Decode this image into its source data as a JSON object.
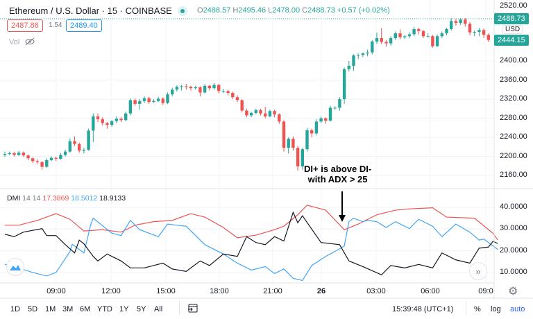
{
  "header": {
    "title": "Ethereum / U.S. Dollar · 15 · COINBASE",
    "ohlc": {
      "o_label": "O",
      "o": "2488.57",
      "h_label": "H",
      "h": "2495.46",
      "l_label": "L",
      "l": "2478.00",
      "c_label": "C",
      "c": "2488.73",
      "change": "+0.57 (+0.02%)"
    },
    "bid": "2487.86",
    "spread": "1.54",
    "ask": "2489.40",
    "vol_label": "Vol"
  },
  "price_axis": {
    "currency": "USD",
    "ticks": [
      "2520.00",
      "2400.00",
      "2360.00",
      "2320.00",
      "2280.00",
      "2240.00",
      "2200.00",
      "2160.00"
    ],
    "last_price_tag": "2488.73",
    "close_tag": "2444.15"
  },
  "dmi": {
    "label": "DMI",
    "params": "14 14",
    "minus_di": "17.3869",
    "plus_di": "18.5012",
    "adx": "18.9133",
    "ticks": [
      "40.0000",
      "30.0000",
      "20.0000",
      "10.0000"
    ]
  },
  "time_axis": {
    "ticks": [
      "09:00",
      "12:00",
      "15:00",
      "18:00",
      "21:00",
      "26",
      "03:00",
      "06:00",
      "09:0"
    ]
  },
  "annotation": {
    "line1": "DI+ is above DI-",
    "line2": "with ADX > 25"
  },
  "toolbar": {
    "ranges": [
      "1D",
      "5D",
      "1M",
      "3M",
      "6M",
      "YTD",
      "1Y",
      "5Y",
      "All"
    ],
    "clock": "15:39:48 (UTC+1)",
    "percent": "%",
    "log": "log",
    "auto": "auto"
  },
  "colors": {
    "up": "#26a69a",
    "down": "#ef5350",
    "plus_di": "#42a5f5",
    "minus_di": "#ef5350",
    "adx": "#131722",
    "accent": "#2962ff"
  },
  "icons": [
    "calendar-goto-icon",
    "eye-crossed-icon",
    "cloud-logo-icon",
    "scroll-right-icon",
    "settings-gear-icon",
    "market-status-dot-icon"
  ],
  "chart_data": [
    {
      "type": "candlestick",
      "title": "Ethereum / U.S. Dollar · 15 · COINBASE",
      "ylim": [
        2150,
        2525
      ],
      "ohlc": [
        [
          2203,
          2210,
          2199,
          2205
        ],
        [
          2205,
          2210,
          2202,
          2207
        ],
        [
          2207,
          2209,
          2200,
          2203
        ],
        [
          2203,
          2211,
          2201,
          2208
        ],
        [
          2208,
          2210,
          2199,
          2202
        ],
        [
          2202,
          2204,
          2192,
          2196
        ],
        [
          2196,
          2198,
          2186,
          2190
        ],
        [
          2190,
          2194,
          2184,
          2188
        ],
        [
          2188,
          2190,
          2172,
          2178
        ],
        [
          2178,
          2196,
          2176,
          2192
        ],
        [
          2192,
          2200,
          2190,
          2197
        ],
        [
          2197,
          2199,
          2190,
          2195
        ],
        [
          2195,
          2207,
          2193,
          2203
        ],
        [
          2203,
          2214,
          2200,
          2210
        ],
        [
          2210,
          2238,
          2208,
          2232
        ],
        [
          2232,
          2242,
          2222,
          2226
        ],
        [
          2226,
          2229,
          2208,
          2212
        ],
        [
          2212,
          2218,
          2206,
          2214
        ],
        [
          2214,
          2258,
          2212,
          2254
        ],
        [
          2254,
          2290,
          2230,
          2284
        ],
        [
          2284,
          2290,
          2272,
          2278
        ],
        [
          2278,
          2282,
          2265,
          2270
        ],
        [
          2270,
          2272,
          2258,
          2266
        ],
        [
          2266,
          2276,
          2262,
          2274
        ],
        [
          2274,
          2284,
          2270,
          2279
        ],
        [
          2279,
          2283,
          2272,
          2276
        ],
        [
          2276,
          2294,
          2274,
          2290
        ],
        [
          2290,
          2322,
          2286,
          2318
        ],
        [
          2318,
          2322,
          2306,
          2310
        ],
        [
          2310,
          2320,
          2298,
          2316
        ],
        [
          2316,
          2326,
          2312,
          2322
        ],
        [
          2322,
          2325,
          2310,
          2314
        ],
        [
          2314,
          2320,
          2312,
          2316
        ],
        [
          2316,
          2325,
          2314,
          2321
        ],
        [
          2321,
          2324,
          2308,
          2312
        ],
        [
          2312,
          2334,
          2310,
          2330
        ],
        [
          2330,
          2344,
          2326,
          2340
        ],
        [
          2340,
          2349,
          2336,
          2346
        ],
        [
          2346,
          2350,
          2338,
          2347
        ],
        [
          2347,
          2352,
          2340,
          2346
        ],
        [
          2346,
          2348,
          2338,
          2343
        ],
        [
          2343,
          2348,
          2340,
          2345
        ],
        [
          2345,
          2347,
          2326,
          2334
        ],
        [
          2334,
          2352,
          2332,
          2348
        ],
        [
          2348,
          2350,
          2338,
          2343
        ],
        [
          2343,
          2354,
          2340,
          2350
        ],
        [
          2350,
          2352,
          2332,
          2337
        ],
        [
          2337,
          2342,
          2333,
          2337
        ],
        [
          2337,
          2340,
          2328,
          2333
        ],
        [
          2333,
          2336,
          2320,
          2324
        ],
        [
          2324,
          2328,
          2314,
          2318
        ],
        [
          2318,
          2320,
          2292,
          2296
        ],
        [
          2296,
          2300,
          2282,
          2286
        ],
        [
          2286,
          2294,
          2282,
          2291
        ],
        [
          2291,
          2300,
          2288,
          2297
        ],
        [
          2297,
          2300,
          2286,
          2290
        ],
        [
          2290,
          2304,
          2280,
          2284
        ],
        [
          2284,
          2298,
          2282,
          2295
        ],
        [
          2295,
          2298,
          2282,
          2288
        ],
        [
          2288,
          2290,
          2268,
          2273
        ],
        [
          2273,
          2276,
          2210,
          2218
        ],
        [
          2218,
          2240,
          2206,
          2237
        ],
        [
          2237,
          2242,
          2212,
          2218
        ],
        [
          2218,
          2222,
          2170,
          2179
        ],
        [
          2179,
          2218,
          2172,
          2215
        ],
        [
          2215,
          2260,
          2210,
          2255
        ],
        [
          2255,
          2258,
          2240,
          2248
        ],
        [
          2248,
          2278,
          2244,
          2273
        ],
        [
          2273,
          2284,
          2270,
          2280
        ],
        [
          2280,
          2282,
          2268,
          2275
        ],
        [
          2275,
          2306,
          2273,
          2302
        ],
        [
          2302,
          2305,
          2298,
          2302
        ],
        [
          2302,
          2324,
          2296,
          2320
        ],
        [
          2320,
          2386,
          2310,
          2383
        ],
        [
          2383,
          2400,
          2378,
          2390
        ],
        [
          2390,
          2414,
          2380,
          2412
        ],
        [
          2412,
          2416,
          2404,
          2413
        ],
        [
          2413,
          2418,
          2408,
          2416
        ],
        [
          2416,
          2424,
          2410,
          2418
        ],
        [
          2418,
          2444,
          2414,
          2441
        ],
        [
          2441,
          2460,
          2436,
          2448
        ],
        [
          2448,
          2470,
          2436,
          2440
        ],
        [
          2440,
          2444,
          2430,
          2437
        ],
        [
          2437,
          2452,
          2432,
          2448
        ],
        [
          2448,
          2462,
          2444,
          2458
        ],
        [
          2458,
          2466,
          2446,
          2450
        ],
        [
          2450,
          2455,
          2446,
          2452
        ],
        [
          2452,
          2460,
          2448,
          2456
        ],
        [
          2456,
          2472,
          2452,
          2467
        ],
        [
          2467,
          2470,
          2456,
          2463
        ],
        [
          2463,
          2465,
          2448,
          2452
        ],
        [
          2452,
          2458,
          2450,
          2452
        ],
        [
          2452,
          2455,
          2428,
          2431
        ],
        [
          2431,
          2456,
          2430,
          2452
        ],
        [
          2452,
          2462,
          2448,
          2458
        ],
        [
          2458,
          2470,
          2454,
          2467
        ],
        [
          2467,
          2490,
          2464,
          2484
        ],
        [
          2484,
          2488,
          2474,
          2480
        ],
        [
          2480,
          2490,
          2476,
          2487
        ],
        [
          2487,
          2490,
          2472,
          2478
        ],
        [
          2478,
          2482,
          2454,
          2460
        ],
        [
          2460,
          2464,
          2452,
          2461
        ],
        [
          2461,
          2470,
          2452,
          2465
        ],
        [
          2465,
          2468,
          2448,
          2455
        ],
        [
          2455,
          2458,
          2440,
          2444.15
        ]
      ]
    },
    {
      "type": "line",
      "ylim": [
        5,
        45
      ],
      "x_unit": "bar index",
      "series": [
        {
          "name": "17.3869",
          "color": "#ef5350",
          "points": [
            [
              0,
              31.8
            ],
            [
              3,
              31.8
            ],
            [
              7,
              34
            ],
            [
              11,
              37.1
            ],
            [
              14,
              34.5
            ],
            [
              17,
              29.1
            ],
            [
              21,
              29.7
            ],
            [
              25,
              28.6
            ],
            [
              28,
              31.8
            ],
            [
              32,
              33.4
            ],
            [
              36,
              34
            ],
            [
              40,
              37.1
            ],
            [
              43,
              35.5
            ],
            [
              47,
              30.7
            ],
            [
              50,
              26
            ],
            [
              54,
              27.2
            ],
            [
              58,
              29.7
            ],
            [
              60,
              31.3
            ],
            [
              63,
              36.6
            ],
            [
              65,
              41
            ],
            [
              69,
              38.7
            ],
            [
              73,
              29.7
            ],
            [
              76,
              32.3
            ],
            [
              80,
              36.6
            ],
            [
              84,
              38.7
            ],
            [
              87,
              39.3
            ],
            [
              92,
              39.8
            ],
            [
              95,
              35.5
            ],
            [
              101,
              35
            ],
            [
              105,
              28
            ],
            [
              106,
              25
            ]
          ]
        },
        {
          "name": "18.5012",
          "color": "#42a5f5",
          "points": [
            [
              0,
              13.7
            ],
            [
              2,
              12.7
            ],
            [
              6,
              10
            ],
            [
              9,
              8.4
            ],
            [
              11,
              10
            ],
            [
              14,
              19.6
            ],
            [
              14.5,
              23
            ],
            [
              17,
              19
            ],
            [
              18.5,
              32.3
            ],
            [
              19,
              35
            ],
            [
              23,
              28.1
            ],
            [
              25,
              27
            ],
            [
              27,
              34
            ],
            [
              29,
              29.7
            ],
            [
              33,
              26.5
            ],
            [
              35,
              32.3
            ],
            [
              39,
              31.3
            ],
            [
              43,
              22.8
            ],
            [
              47,
              18.5
            ],
            [
              50,
              14.3
            ],
            [
              53,
              11.1
            ],
            [
              56,
              12.7
            ],
            [
              58,
              9.5
            ],
            [
              60,
              11.6
            ],
            [
              62,
              7.3
            ],
            [
              64,
              6.3
            ],
            [
              66,
              13.2
            ],
            [
              69,
              17.4
            ],
            [
              72,
              20.9
            ],
            [
              73,
              22.2
            ],
            [
              74,
              33.4
            ],
            [
              75,
              35
            ],
            [
              77,
              33.4
            ],
            [
              78,
              34
            ],
            [
              80,
              33.4
            ],
            [
              82,
              30.7
            ],
            [
              84,
              33.4
            ],
            [
              87,
              30.2
            ],
            [
              89,
              34.5
            ],
            [
              92,
              31.3
            ],
            [
              94,
              26.5
            ],
            [
              97,
              32.3
            ],
            [
              100,
              28.6
            ],
            [
              102,
              24.9
            ],
            [
              103,
              25.4
            ],
            [
              106,
              20.6
            ]
          ]
        },
        {
          "name": "18.9133",
          "color": "#131722",
          "points": [
            [
              0,
              27.6
            ],
            [
              2,
              26.5
            ],
            [
              4,
              28.6
            ],
            [
              8,
              30.2
            ],
            [
              9,
              27
            ],
            [
              11,
              27
            ],
            [
              13,
              22.8
            ],
            [
              15,
              19
            ],
            [
              16,
              24.9
            ],
            [
              17,
              23.2
            ],
            [
              19,
              17.4
            ],
            [
              20,
              15.3
            ],
            [
              22,
              18.5
            ],
            [
              25,
              15.3
            ],
            [
              27,
              12.1
            ],
            [
              30,
              12.1
            ],
            [
              34,
              14.3
            ],
            [
              36,
              11.6
            ],
            [
              39,
              10.5
            ],
            [
              42,
              15.3
            ],
            [
              44,
              13.2
            ],
            [
              47,
              18.5
            ],
            [
              50,
              17.4
            ],
            [
              52,
              26.5
            ],
            [
              54,
              23.8
            ],
            [
              56,
              22.8
            ],
            [
              58,
              26.5
            ],
            [
              60,
              24.5
            ],
            [
              62,
              37.7
            ],
            [
              63,
              32.9
            ],
            [
              64,
              36.1
            ],
            [
              68,
              23.8
            ],
            [
              72,
              22.8
            ],
            [
              74,
              15.3
            ],
            [
              77,
              12.7
            ],
            [
              81,
              8.9
            ],
            [
              83,
              13.2
            ],
            [
              86,
              12.1
            ],
            [
              89,
              13.7
            ],
            [
              92,
              12.1
            ],
            [
              94,
              19
            ],
            [
              97,
              15.8
            ],
            [
              100,
              14.3
            ],
            [
              102,
              21.2
            ],
            [
              104,
              21.7
            ],
            [
              105,
              24.4
            ],
            [
              106,
              23.3
            ]
          ]
        }
      ]
    }
  ]
}
